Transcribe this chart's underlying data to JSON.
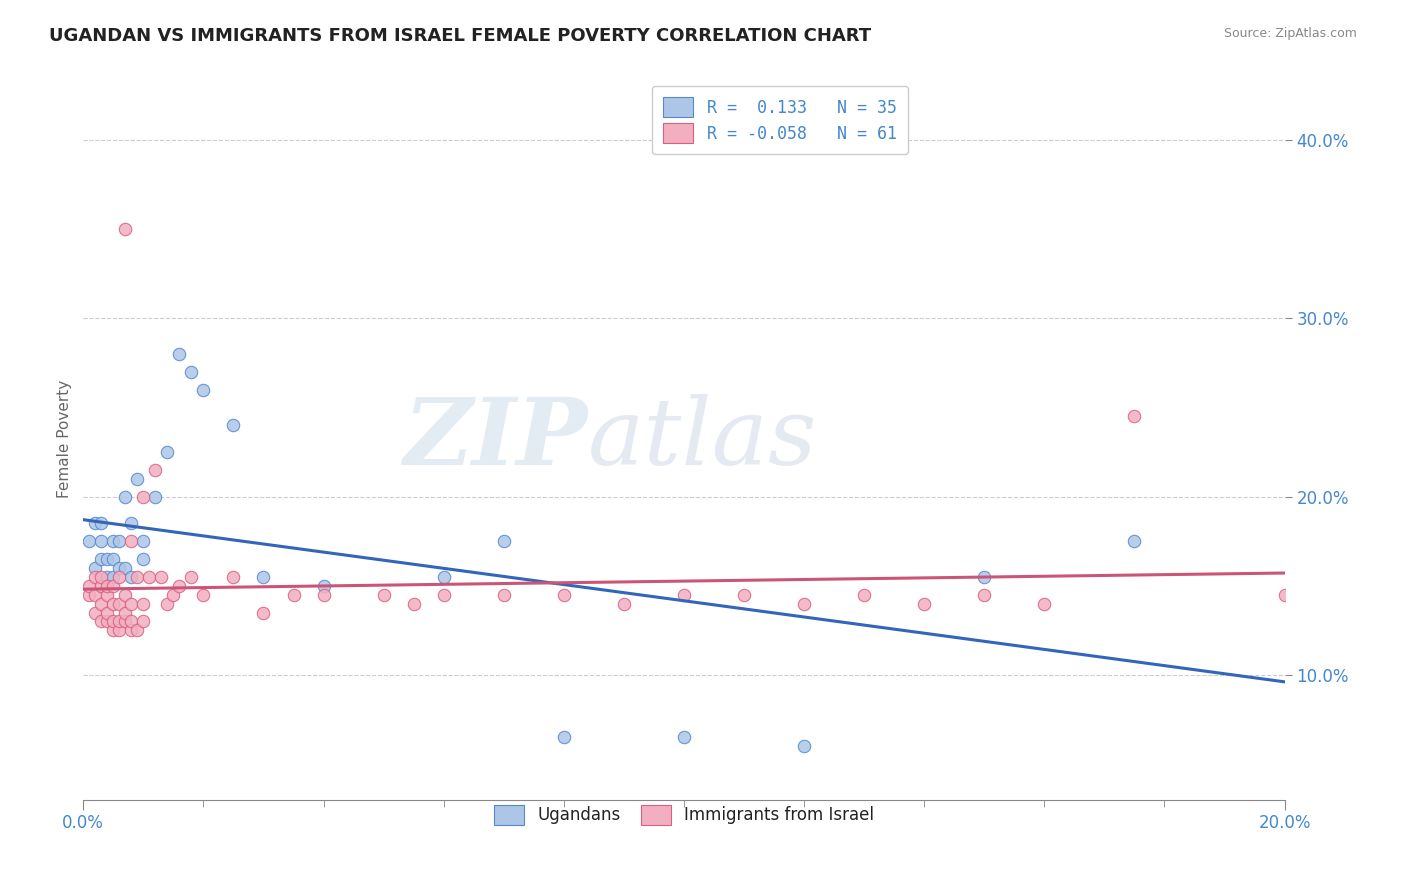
{
  "title": "UGANDAN VS IMMIGRANTS FROM ISRAEL FEMALE POVERTY CORRELATION CHART",
  "source": "Source: ZipAtlas.com",
  "ylabel": "Female Poverty",
  "xlim": [
    0.0,
    0.2
  ],
  "ylim": [
    0.03,
    0.435
  ],
  "yticks": [
    0.1,
    0.2,
    0.3,
    0.4
  ],
  "ytick_labels": [
    "10.0%",
    "20.0%",
    "30.0%",
    "40.0%"
  ],
  "ugandan_color": "#adc6e8",
  "israel_color": "#f2afc0",
  "ugandan_edge": "#5588cc",
  "israel_edge": "#d96080",
  "line_blue": "#3366bb",
  "line_pink": "#cc5577",
  "legend_r1": "R =  0.133   N = 35",
  "legend_r2": "R = -0.058   N = 61",
  "legend_label1": "Ugandans",
  "legend_label2": "Immigrants from Israel",
  "watermark_zip": "ZIP",
  "watermark_atlas": "atlas",
  "ugandan_x": [
    0.001,
    0.002,
    0.002,
    0.003,
    0.003,
    0.003,
    0.004,
    0.004,
    0.005,
    0.005,
    0.005,
    0.006,
    0.006,
    0.007,
    0.007,
    0.008,
    0.008,
    0.009,
    0.01,
    0.01,
    0.012,
    0.014,
    0.016,
    0.018,
    0.02,
    0.025,
    0.03,
    0.04,
    0.06,
    0.07,
    0.08,
    0.1,
    0.12,
    0.15,
    0.175
  ],
  "ugandan_y": [
    0.175,
    0.185,
    0.16,
    0.165,
    0.175,
    0.185,
    0.155,
    0.165,
    0.155,
    0.165,
    0.175,
    0.16,
    0.175,
    0.16,
    0.2,
    0.155,
    0.185,
    0.21,
    0.165,
    0.175,
    0.2,
    0.225,
    0.28,
    0.27,
    0.26,
    0.24,
    0.155,
    0.15,
    0.155,
    0.175,
    0.065,
    0.065,
    0.06,
    0.155,
    0.175
  ],
  "israel_x": [
    0.001,
    0.001,
    0.002,
    0.002,
    0.002,
    0.003,
    0.003,
    0.003,
    0.003,
    0.004,
    0.004,
    0.004,
    0.004,
    0.005,
    0.005,
    0.005,
    0.005,
    0.006,
    0.006,
    0.006,
    0.006,
    0.007,
    0.007,
    0.007,
    0.007,
    0.008,
    0.008,
    0.008,
    0.008,
    0.009,
    0.009,
    0.01,
    0.01,
    0.01,
    0.011,
    0.012,
    0.013,
    0.014,
    0.015,
    0.016,
    0.018,
    0.02,
    0.025,
    0.03,
    0.035,
    0.04,
    0.05,
    0.055,
    0.06,
    0.07,
    0.08,
    0.09,
    0.1,
    0.11,
    0.12,
    0.13,
    0.14,
    0.15,
    0.16,
    0.175,
    0.2
  ],
  "israel_y": [
    0.145,
    0.15,
    0.135,
    0.145,
    0.155,
    0.13,
    0.14,
    0.15,
    0.155,
    0.13,
    0.135,
    0.145,
    0.15,
    0.125,
    0.13,
    0.14,
    0.15,
    0.125,
    0.13,
    0.14,
    0.155,
    0.13,
    0.135,
    0.145,
    0.35,
    0.125,
    0.13,
    0.14,
    0.175,
    0.125,
    0.155,
    0.13,
    0.14,
    0.2,
    0.155,
    0.215,
    0.155,
    0.14,
    0.145,
    0.15,
    0.155,
    0.145,
    0.155,
    0.135,
    0.145,
    0.145,
    0.145,
    0.14,
    0.145,
    0.145,
    0.145,
    0.14,
    0.145,
    0.145,
    0.14,
    0.145,
    0.14,
    0.145,
    0.14,
    0.245,
    0.145
  ]
}
